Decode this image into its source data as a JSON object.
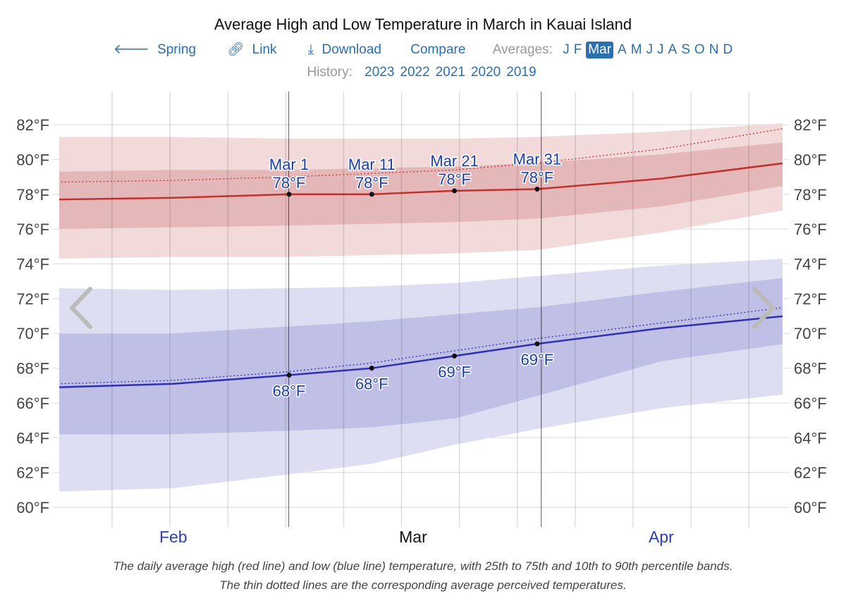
{
  "header": {
    "title": "Average High and Low Temperature in March in Kauai Island",
    "back_label": "Spring",
    "link_label": "Link",
    "download_label": "Download",
    "compare_label": "Compare",
    "averages_label": "Averages:",
    "months": [
      "J",
      "F",
      "Mar",
      "A",
      "M",
      "J",
      "J",
      "A",
      "S",
      "O",
      "N",
      "D"
    ],
    "selected_month": "Mar",
    "history_label": "History:",
    "history_years": [
      "2023",
      "2022",
      "2021",
      "2020",
      "2019"
    ]
  },
  "chart_data": {
    "type": "area",
    "title": "Average High and Low Temperature in March in Kauai Island",
    "ylim": [
      59,
      83
    ],
    "xlim": [
      "2023-02-01",
      "2023-04-30"
    ],
    "yticks": [
      "60°F",
      "62°F",
      "64°F",
      "66°F",
      "68°F",
      "70°F",
      "72°F",
      "74°F",
      "76°F",
      "78°F",
      "80°F",
      "82°F"
    ],
    "ytick_values": [
      60,
      62,
      64,
      66,
      68,
      70,
      72,
      74,
      76,
      78,
      80,
      82
    ],
    "xticks": [
      {
        "label": "Feb",
        "date": "2023-02-15",
        "current": false
      },
      {
        "label": "Mar",
        "date": "2023-03-16",
        "current": true
      },
      {
        "label": "Apr",
        "date": "2023-04-15",
        "current": false
      }
    ],
    "grid": true,
    "x": [
      "2023-02-01",
      "2023-02-15",
      "2023-03-01",
      "2023-03-11",
      "2023-03-21",
      "2023-03-31",
      "2023-04-15",
      "2023-04-30"
    ],
    "high": {
      "avg": [
        77.7,
        77.8,
        78.0,
        78.0,
        78.2,
        78.3,
        78.9,
        79.8
      ],
      "p25": [
        76.0,
        76.1,
        76.2,
        76.3,
        76.4,
        76.6,
        77.3,
        78.5
      ],
      "p75": [
        79.3,
        79.4,
        79.4,
        79.5,
        79.6,
        79.8,
        80.3,
        81.0
      ],
      "p10": [
        74.3,
        74.4,
        74.4,
        74.5,
        74.6,
        74.8,
        75.8,
        77.1
      ],
      "p90": [
        81.3,
        81.3,
        81.2,
        81.2,
        81.2,
        81.3,
        81.6,
        82.1
      ],
      "feels": [
        78.7,
        78.8,
        79.0,
        79.2,
        79.4,
        79.8,
        80.6,
        81.8
      ]
    },
    "low": {
      "avg": [
        66.9,
        67.1,
        67.6,
        68.0,
        68.7,
        69.4,
        70.3,
        71.0
      ],
      "p25": [
        64.2,
        64.2,
        64.4,
        64.6,
        65.1,
        66.4,
        68.4,
        69.4
      ],
      "p75": [
        70.0,
        70.0,
        70.4,
        70.7,
        71.1,
        71.5,
        72.4,
        73.2
      ],
      "p10": [
        60.9,
        61.1,
        61.9,
        62.5,
        63.6,
        64.5,
        65.7,
        66.5
      ],
      "p90": [
        72.6,
        72.5,
        72.6,
        72.7,
        72.9,
        73.3,
        73.9,
        74.3
      ],
      "feels": [
        67.1,
        67.3,
        67.8,
        68.3,
        69.0,
        69.7,
        70.6,
        71.5
      ]
    },
    "annotations": [
      {
        "date": "2023-03-01",
        "label": "Mar 1",
        "high": 78.0,
        "high_label": "78°F",
        "low": 67.6,
        "low_label": "68°F"
      },
      {
        "date": "2023-03-11",
        "label": "Mar 11",
        "high": 78.0,
        "high_label": "78°F",
        "low": 68.0,
        "low_label": "68°F"
      },
      {
        "date": "2023-03-21",
        "label": "Mar 21",
        "high": 78.2,
        "high_label": "78°F",
        "low": 68.7,
        "low_label": "69°F"
      },
      {
        "date": "2023-03-31",
        "label": "Mar 31",
        "high": 78.3,
        "high_label": "78°F",
        "low": 69.4,
        "low_label": "69°F"
      }
    ],
    "colors": {
      "high_line": "#c0312f",
      "high_band_inner": "#e4b8b8",
      "high_band_outer": "#f2dada",
      "low_line": "#2f2fb5",
      "low_band_inner": "#c0c0e6",
      "low_band_outer": "#dedef2",
      "label": "#1a3fa6"
    }
  },
  "caption": {
    "line1": "The daily average high (red line) and low (blue line) temperature, with 25th to 75th and 10th to 90th percentile bands.",
    "line2": "The thin dotted lines are the corresponding average perceived temperatures."
  }
}
